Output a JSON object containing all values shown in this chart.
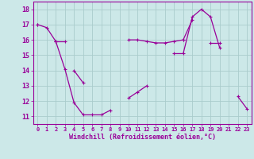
{
  "xlabel": "Windchill (Refroidissement éolien,°C)",
  "x": [
    0,
    1,
    2,
    3,
    4,
    5,
    6,
    7,
    8,
    9,
    10,
    11,
    12,
    13,
    14,
    15,
    16,
    17,
    18,
    19,
    20,
    21,
    22,
    23
  ],
  "line1": [
    17.0,
    16.8,
    15.9,
    14.1,
    11.9,
    11.1,
    11.1,
    11.1,
    11.4,
    null,
    12.2,
    12.6,
    13.0,
    null,
    null,
    15.1,
    15.1,
    17.5,
    18.0,
    17.5,
    15.5,
    null,
    12.3,
    11.5
  ],
  "line2": [
    17.0,
    null,
    15.9,
    null,
    14.0,
    13.2,
    null,
    null,
    null,
    null,
    null,
    null,
    null,
    null,
    null,
    null,
    16.0,
    17.3,
    null,
    null,
    null,
    null,
    null,
    null
  ],
  "line3": [
    null,
    null,
    15.9,
    15.9,
    null,
    null,
    null,
    null,
    null,
    null,
    16.0,
    16.0,
    15.9,
    15.8,
    15.8,
    15.9,
    16.0,
    null,
    null,
    15.8,
    15.8,
    null,
    null,
    null
  ],
  "bg_color": "#cce8e8",
  "line_color": "#990099",
  "grid_color": "#aacccc",
  "ylim": [
    10.5,
    18.5
  ],
  "xlim": [
    -0.5,
    23.5
  ],
  "yticks": [
    11,
    12,
    13,
    14,
    15,
    16,
    17,
    18
  ],
  "xticks": [
    0,
    1,
    2,
    3,
    4,
    5,
    6,
    7,
    8,
    9,
    10,
    11,
    12,
    13,
    14,
    15,
    16,
    17,
    18,
    19,
    20,
    21,
    22,
    23
  ]
}
